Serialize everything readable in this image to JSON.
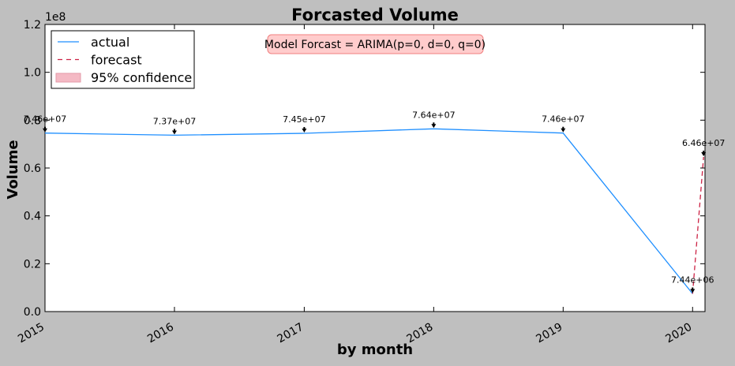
{
  "chart_data": {
    "type": "line",
    "title": "Forcasted Volume",
    "xlabel": "by month",
    "ylabel": "Volume",
    "y_scale_label": "1e8",
    "x_axis": "date",
    "xlim": [
      "2015-01-01",
      "2020-02-05"
    ],
    "ylim": [
      0,
      1.2
    ],
    "x_tick_labels": [
      "2015",
      "2016",
      "2017",
      "2018",
      "2019",
      "2020"
    ],
    "x_tick_dates": [
      "2015-01-01",
      "2016-01-01",
      "2017-01-01",
      "2018-01-01",
      "2019-01-01",
      "2020-01-01"
    ],
    "y_tick_labels": [
      "0.0",
      "0.2",
      "0.4",
      "0.6",
      "0.8",
      "1.0",
      "1.2"
    ],
    "y_tick_values": [
      0,
      0.2,
      0.4,
      0.6,
      0.8,
      1.0,
      1.2
    ],
    "grid": false,
    "legend_position": "top-left",
    "legend": [
      {
        "label": "actual",
        "style": "solid",
        "color": "#1f8fff"
      },
      {
        "label": "forecast",
        "style": "dashed",
        "color": "#cc2244"
      },
      {
        "label": "95% confidence",
        "style": "fill",
        "color": "#f4b9c4"
      }
    ],
    "series": [
      {
        "name": "actual",
        "color": "#1f8fff",
        "x": [
          "2015-01-01",
          "2016-01-01",
          "2017-01-01",
          "2018-01-01",
          "2019-01-01",
          "2020-01-01"
        ],
        "y": [
          0.746,
          0.737,
          0.745,
          0.764,
          0.746,
          0.0744
        ]
      },
      {
        "name": "forecast",
        "color": "#cc2244",
        "x": [
          "2020-01-01",
          "2020-02-01"
        ],
        "y": [
          0.0744,
          0.646
        ]
      }
    ],
    "annotations": [
      {
        "text": "7.46e+07",
        "x": "2015-01-01",
        "y": 0.746
      },
      {
        "text": "7.37e+07",
        "x": "2016-01-01",
        "y": 0.737
      },
      {
        "text": "7.45e+07",
        "x": "2017-01-01",
        "y": 0.745
      },
      {
        "text": "7.64e+07",
        "x": "2018-01-01",
        "y": 0.764
      },
      {
        "text": "7.46e+07",
        "x": "2019-01-01",
        "y": 0.746
      },
      {
        "text": "7.44e+06",
        "x": "2020-01-01",
        "y": 0.0744
      },
      {
        "text": "6.46e+07",
        "x": "2020-02-01",
        "y": 0.646
      }
    ],
    "info_box": {
      "text": "Model Forcast = ARIMA(p=0, d=0, q=0)",
      "fill_color": "#ffcccc",
      "border_color": "#f08080"
    }
  }
}
